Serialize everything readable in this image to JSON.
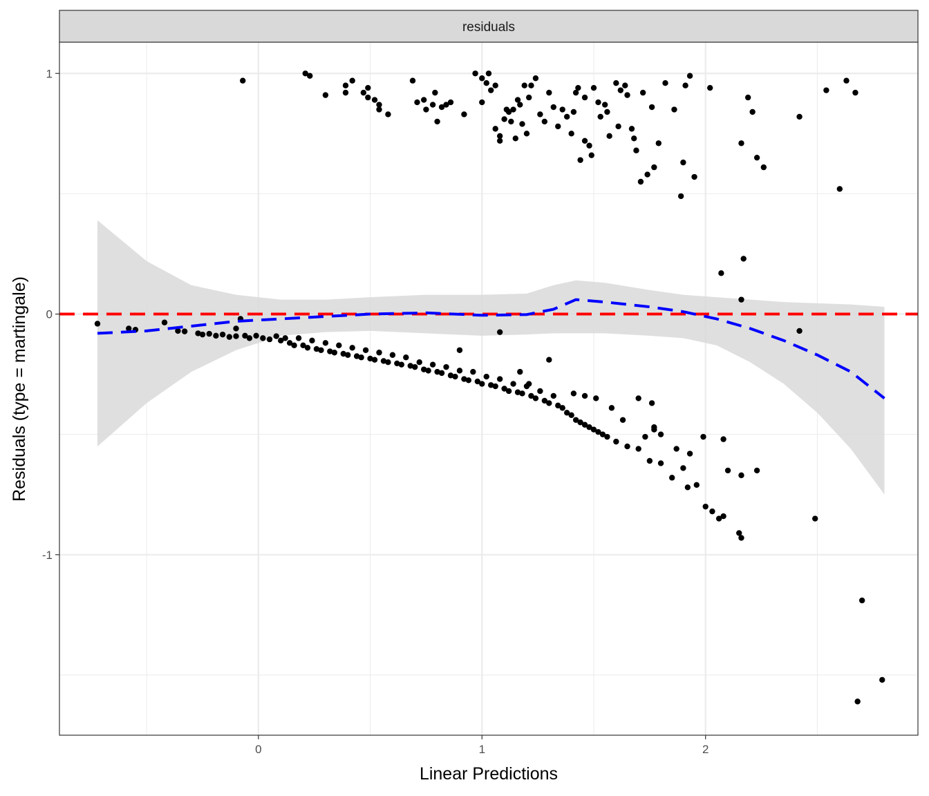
{
  "chart_data": {
    "type": "scatter",
    "facet_label": "residuals",
    "xlabel": "Linear Predictions",
    "ylabel": "Residuals (type = martingale)",
    "xlim": [
      -0.89,
      2.95
    ],
    "ylim": [
      -1.75,
      1.13
    ],
    "x_ticks": [
      0,
      1,
      2
    ],
    "x_tick_labels": [
      "0",
      "1",
      "2"
    ],
    "y_ticks": [
      -1,
      0,
      1
    ],
    "y_tick_labels": [
      "-1",
      "0",
      "1"
    ],
    "grid": true,
    "colors": {
      "points": "#000000",
      "reference_line": "#ff0000",
      "smooth_line": "#0000ff",
      "confidence_band": "#d9d9d9",
      "strip_fill": "#d9d9d9",
      "grid": "#ebebeb"
    },
    "reference_line": {
      "y": 0,
      "style": "dashed"
    },
    "smooth": {
      "style": "dashed",
      "x": [
        -0.72,
        -0.5,
        -0.3,
        -0.1,
        0.1,
        0.3,
        0.5,
        0.75,
        1.0,
        1.2,
        1.32,
        1.42,
        1.55,
        1.75,
        1.9,
        2.05,
        2.2,
        2.35,
        2.5,
        2.65,
        2.8
      ],
      "y": [
        -0.08,
        -0.07,
        -0.05,
        -0.03,
        -0.02,
        -0.01,
        0.0,
        0.005,
        -0.005,
        -0.002,
        0.02,
        0.06,
        0.05,
        0.03,
        0.01,
        -0.02,
        -0.06,
        -0.11,
        -0.17,
        -0.24,
        -0.35
      ],
      "ci_lower": [
        -0.55,
        -0.37,
        -0.24,
        -0.15,
        -0.09,
        -0.075,
        -0.07,
        -0.08,
        -0.09,
        -0.085,
        -0.08,
        -0.08,
        -0.08,
        -0.09,
        -0.1,
        -0.13,
        -0.2,
        -0.29,
        -0.41,
        -0.56,
        -0.75
      ],
      "ci_upper": [
        0.39,
        0.22,
        0.12,
        0.08,
        0.06,
        0.06,
        0.07,
        0.08,
        0.08,
        0.085,
        0.12,
        0.14,
        0.13,
        0.1,
        0.08,
        0.07,
        0.06,
        0.05,
        0.045,
        0.04,
        0.03
      ]
    },
    "points": [
      [
        -0.72,
        -0.04
      ],
      [
        -0.58,
        -0.06
      ],
      [
        -0.55,
        -0.065
      ],
      [
        -0.42,
        -0.035
      ],
      [
        -0.36,
        -0.07
      ],
      [
        -0.33,
        -0.072
      ],
      [
        -0.27,
        -0.08
      ],
      [
        -0.25,
        -0.085
      ],
      [
        -0.22,
        -0.082
      ],
      [
        -0.19,
        -0.09
      ],
      [
        -0.16,
        -0.085
      ],
      [
        -0.13,
        -0.095
      ],
      [
        -0.1,
        -0.092
      ],
      [
        -0.08,
        -0.02
      ],
      [
        -0.06,
        -0.09
      ],
      [
        -0.04,
        -0.1
      ],
      [
        -0.01,
        -0.09
      ],
      [
        0.02,
        -0.1
      ],
      [
        0.05,
        -0.105
      ],
      [
        0.08,
        -0.092
      ],
      [
        0.1,
        -0.11
      ],
      [
        0.12,
        -0.1
      ],
      [
        0.14,
        -0.12
      ],
      [
        0.16,
        -0.13
      ],
      [
        0.18,
        -0.1
      ],
      [
        0.2,
        -0.13
      ],
      [
        0.22,
        -0.14
      ],
      [
        0.24,
        -0.11
      ],
      [
        0.26,
        -0.145
      ],
      [
        0.28,
        -0.15
      ],
      [
        0.3,
        -0.12
      ],
      [
        0.32,
        -0.155
      ],
      [
        0.34,
        -0.16
      ],
      [
        0.36,
        -0.13
      ],
      [
        0.38,
        -0.165
      ],
      [
        0.4,
        -0.17
      ],
      [
        0.42,
        -0.14
      ],
      [
        0.44,
        -0.175
      ],
      [
        0.46,
        -0.18
      ],
      [
        0.48,
        -0.15
      ],
      [
        0.5,
        -0.185
      ],
      [
        0.52,
        -0.19
      ],
      [
        0.54,
        -0.16
      ],
      [
        0.56,
        -0.195
      ],
      [
        0.58,
        -0.2
      ],
      [
        0.6,
        -0.17
      ],
      [
        0.62,
        -0.205
      ],
      [
        0.64,
        -0.21
      ],
      [
        0.66,
        -0.18
      ],
      [
        0.68,
        -0.215
      ],
      [
        0.7,
        -0.22
      ],
      [
        0.72,
        -0.2
      ],
      [
        0.74,
        -0.23
      ],
      [
        0.76,
        -0.235
      ],
      [
        0.78,
        -0.21
      ],
      [
        0.8,
        -0.24
      ],
      [
        0.82,
        -0.245
      ],
      [
        0.84,
        -0.22
      ],
      [
        0.86,
        -0.255
      ],
      [
        0.88,
        -0.26
      ],
      [
        0.9,
        -0.235
      ],
      [
        0.92,
        -0.27
      ],
      [
        0.94,
        -0.275
      ],
      [
        0.96,
        -0.24
      ],
      [
        0.98,
        -0.28
      ],
      [
        1.0,
        -0.29
      ],
      [
        1.02,
        -0.26
      ],
      [
        1.04,
        -0.295
      ],
      [
        1.06,
        -0.3
      ],
      [
        1.08,
        -0.27
      ],
      [
        1.1,
        -0.31
      ],
      [
        1.12,
        -0.32
      ],
      [
        1.14,
        -0.29
      ],
      [
        1.16,
        -0.325
      ],
      [
        1.18,
        -0.33
      ],
      [
        1.2,
        -0.3
      ],
      [
        1.22,
        -0.34
      ],
      [
        1.24,
        -0.35
      ],
      [
        1.26,
        -0.32
      ],
      [
        1.28,
        -0.36
      ],
      [
        1.3,
        -0.37
      ],
      [
        1.32,
        -0.34
      ],
      [
        1.34,
        -0.38
      ],
      [
        1.36,
        -0.39
      ],
      [
        1.38,
        -0.41
      ],
      [
        1.4,
        -0.42
      ],
      [
        1.42,
        -0.44
      ],
      [
        1.44,
        -0.45
      ],
      [
        1.46,
        -0.46
      ],
      [
        1.48,
        -0.47
      ],
      [
        1.5,
        -0.48
      ],
      [
        1.52,
        -0.49
      ],
      [
        1.54,
        -0.5
      ],
      [
        1.56,
        -0.51
      ],
      [
        1.6,
        -0.53
      ],
      [
        1.65,
        -0.55
      ],
      [
        1.7,
        -0.56
      ],
      [
        1.75,
        -0.61
      ],
      [
        1.8,
        -0.62
      ],
      [
        1.85,
        -0.68
      ],
      [
        1.9,
        -0.64
      ],
      [
        1.92,
        -0.72
      ],
      [
        1.96,
        -0.71
      ],
      [
        2.0,
        -0.8
      ],
      [
        2.03,
        -0.82
      ],
      [
        2.06,
        -0.85
      ],
      [
        2.08,
        -0.84
      ],
      [
        2.15,
        -0.91
      ],
      [
        2.16,
        -0.93
      ],
      [
        2.1,
        -0.65
      ],
      [
        2.16,
        -0.67
      ],
      [
        2.23,
        -0.65
      ],
      [
        2.08,
        -0.52
      ],
      [
        1.99,
        -0.51
      ],
      [
        1.93,
        -0.58
      ],
      [
        1.87,
        -0.56
      ],
      [
        1.8,
        -0.5
      ],
      [
        1.77,
        -0.47
      ],
      [
        1.73,
        -0.51
      ],
      [
        1.63,
        -0.44
      ],
      [
        1.58,
        -0.39
      ],
      [
        1.51,
        -0.35
      ],
      [
        1.46,
        -0.34
      ],
      [
        1.41,
        -0.33
      ],
      [
        1.3,
        -0.19
      ],
      [
        1.21,
        -0.29
      ],
      [
        1.17,
        -0.24
      ],
      [
        0.9,
        -0.15
      ],
      [
        1.08,
        -0.075
      ],
      [
        -0.1,
        -0.06
      ],
      [
        2.42,
        -0.07
      ],
      [
        2.16,
        0.06
      ],
      [
        1.7,
        -0.35
      ],
      [
        1.76,
        -0.37
      ],
      [
        1.77,
        -0.48
      ],
      [
        2.49,
        -0.85
      ],
      [
        2.7,
        -1.19
      ],
      [
        2.68,
        -1.61
      ],
      [
        2.79,
        -1.52
      ],
      [
        -0.07,
        0.97
      ],
      [
        0.21,
        1.0
      ],
      [
        0.23,
        0.99
      ],
      [
        0.3,
        0.91
      ],
      [
        0.39,
        0.95
      ],
      [
        0.42,
        0.97
      ],
      [
        0.39,
        0.92
      ],
      [
        0.47,
        0.92
      ],
      [
        0.49,
        0.94
      ],
      [
        0.49,
        0.9
      ],
      [
        0.52,
        0.89
      ],
      [
        0.54,
        0.85
      ],
      [
        0.54,
        0.87
      ],
      [
        0.58,
        0.83
      ],
      [
        0.69,
        0.97
      ],
      [
        0.71,
        0.88
      ],
      [
        0.74,
        0.89
      ],
      [
        0.75,
        0.85
      ],
      [
        0.78,
        0.87
      ],
      [
        0.79,
        0.92
      ],
      [
        0.8,
        0.8
      ],
      [
        0.82,
        0.86
      ],
      [
        0.84,
        0.87
      ],
      [
        0.86,
        0.88
      ],
      [
        0.92,
        0.83
      ],
      [
        0.97,
        1.0
      ],
      [
        1.0,
        0.98
      ],
      [
        1.02,
        0.96
      ],
      [
        1.04,
        0.93
      ],
      [
        1.06,
        0.77
      ],
      [
        1.08,
        0.74
      ],
      [
        1.1,
        0.81
      ],
      [
        1.12,
        0.84
      ],
      [
        1.14,
        0.85
      ],
      [
        1.16,
        0.89
      ],
      [
        1.18,
        0.79
      ],
      [
        1.2,
        0.75
      ],
      [
        1.22,
        0.95
      ],
      [
        1.24,
        0.98
      ],
      [
        1.26,
        0.83
      ],
      [
        1.28,
        0.8
      ],
      [
        1.3,
        0.92
      ],
      [
        1.32,
        0.86
      ],
      [
        1.34,
        0.78
      ],
      [
        1.36,
        0.85
      ],
      [
        1.38,
        0.82
      ],
      [
        1.4,
        0.75
      ],
      [
        1.42,
        0.92
      ],
      [
        1.44,
        0.64
      ],
      [
        1.46,
        0.72
      ],
      [
        1.48,
        0.7
      ],
      [
        1.5,
        0.94
      ],
      [
        1.52,
        0.88
      ],
      [
        1.55,
        0.87
      ],
      [
        1.57,
        0.74
      ],
      [
        1.6,
        0.96
      ],
      [
        1.62,
        0.93
      ],
      [
        1.65,
        0.91
      ],
      [
        1.67,
        0.77
      ],
      [
        1.69,
        0.68
      ],
      [
        1.71,
        0.55
      ],
      [
        1.74,
        0.58
      ],
      [
        1.77,
        0.61
      ],
      [
        1.79,
        0.71
      ],
      [
        1.82,
        0.96
      ],
      [
        1.86,
        0.85
      ],
      [
        1.89,
        0.49
      ],
      [
        1.91,
        0.95
      ],
      [
        1.95,
        0.57
      ],
      [
        2.02,
        0.94
      ],
      [
        2.07,
        0.17
      ],
      [
        2.16,
        0.71
      ],
      [
        2.17,
        0.23
      ],
      [
        2.19,
        0.9
      ],
      [
        2.21,
        0.84
      ],
      [
        2.23,
        0.65
      ],
      [
        2.26,
        0.61
      ],
      [
        2.42,
        0.82
      ],
      [
        2.54,
        0.93
      ],
      [
        2.6,
        0.52
      ],
      [
        2.63,
        0.97
      ],
      [
        2.67,
        0.92
      ],
      [
        1.0,
        0.88
      ],
      [
        1.03,
        1.0
      ],
      [
        1.06,
        0.95
      ],
      [
        1.08,
        0.72
      ],
      [
        1.11,
        0.85
      ],
      [
        1.13,
        0.8
      ],
      [
        1.15,
        0.73
      ],
      [
        1.17,
        0.87
      ],
      [
        1.19,
        0.95
      ],
      [
        1.21,
        0.9
      ],
      [
        1.41,
        0.84
      ],
      [
        1.43,
        0.94
      ],
      [
        1.46,
        0.9
      ],
      [
        1.49,
        0.66
      ],
      [
        1.53,
        0.82
      ],
      [
        1.56,
        0.84
      ],
      [
        1.61,
        0.78
      ],
      [
        1.64,
        0.95
      ],
      [
        1.68,
        0.73
      ],
      [
        1.72,
        0.92
      ],
      [
        1.76,
        0.86
      ],
      [
        1.9,
        0.63
      ],
      [
        1.93,
        0.99
      ]
    ]
  }
}
